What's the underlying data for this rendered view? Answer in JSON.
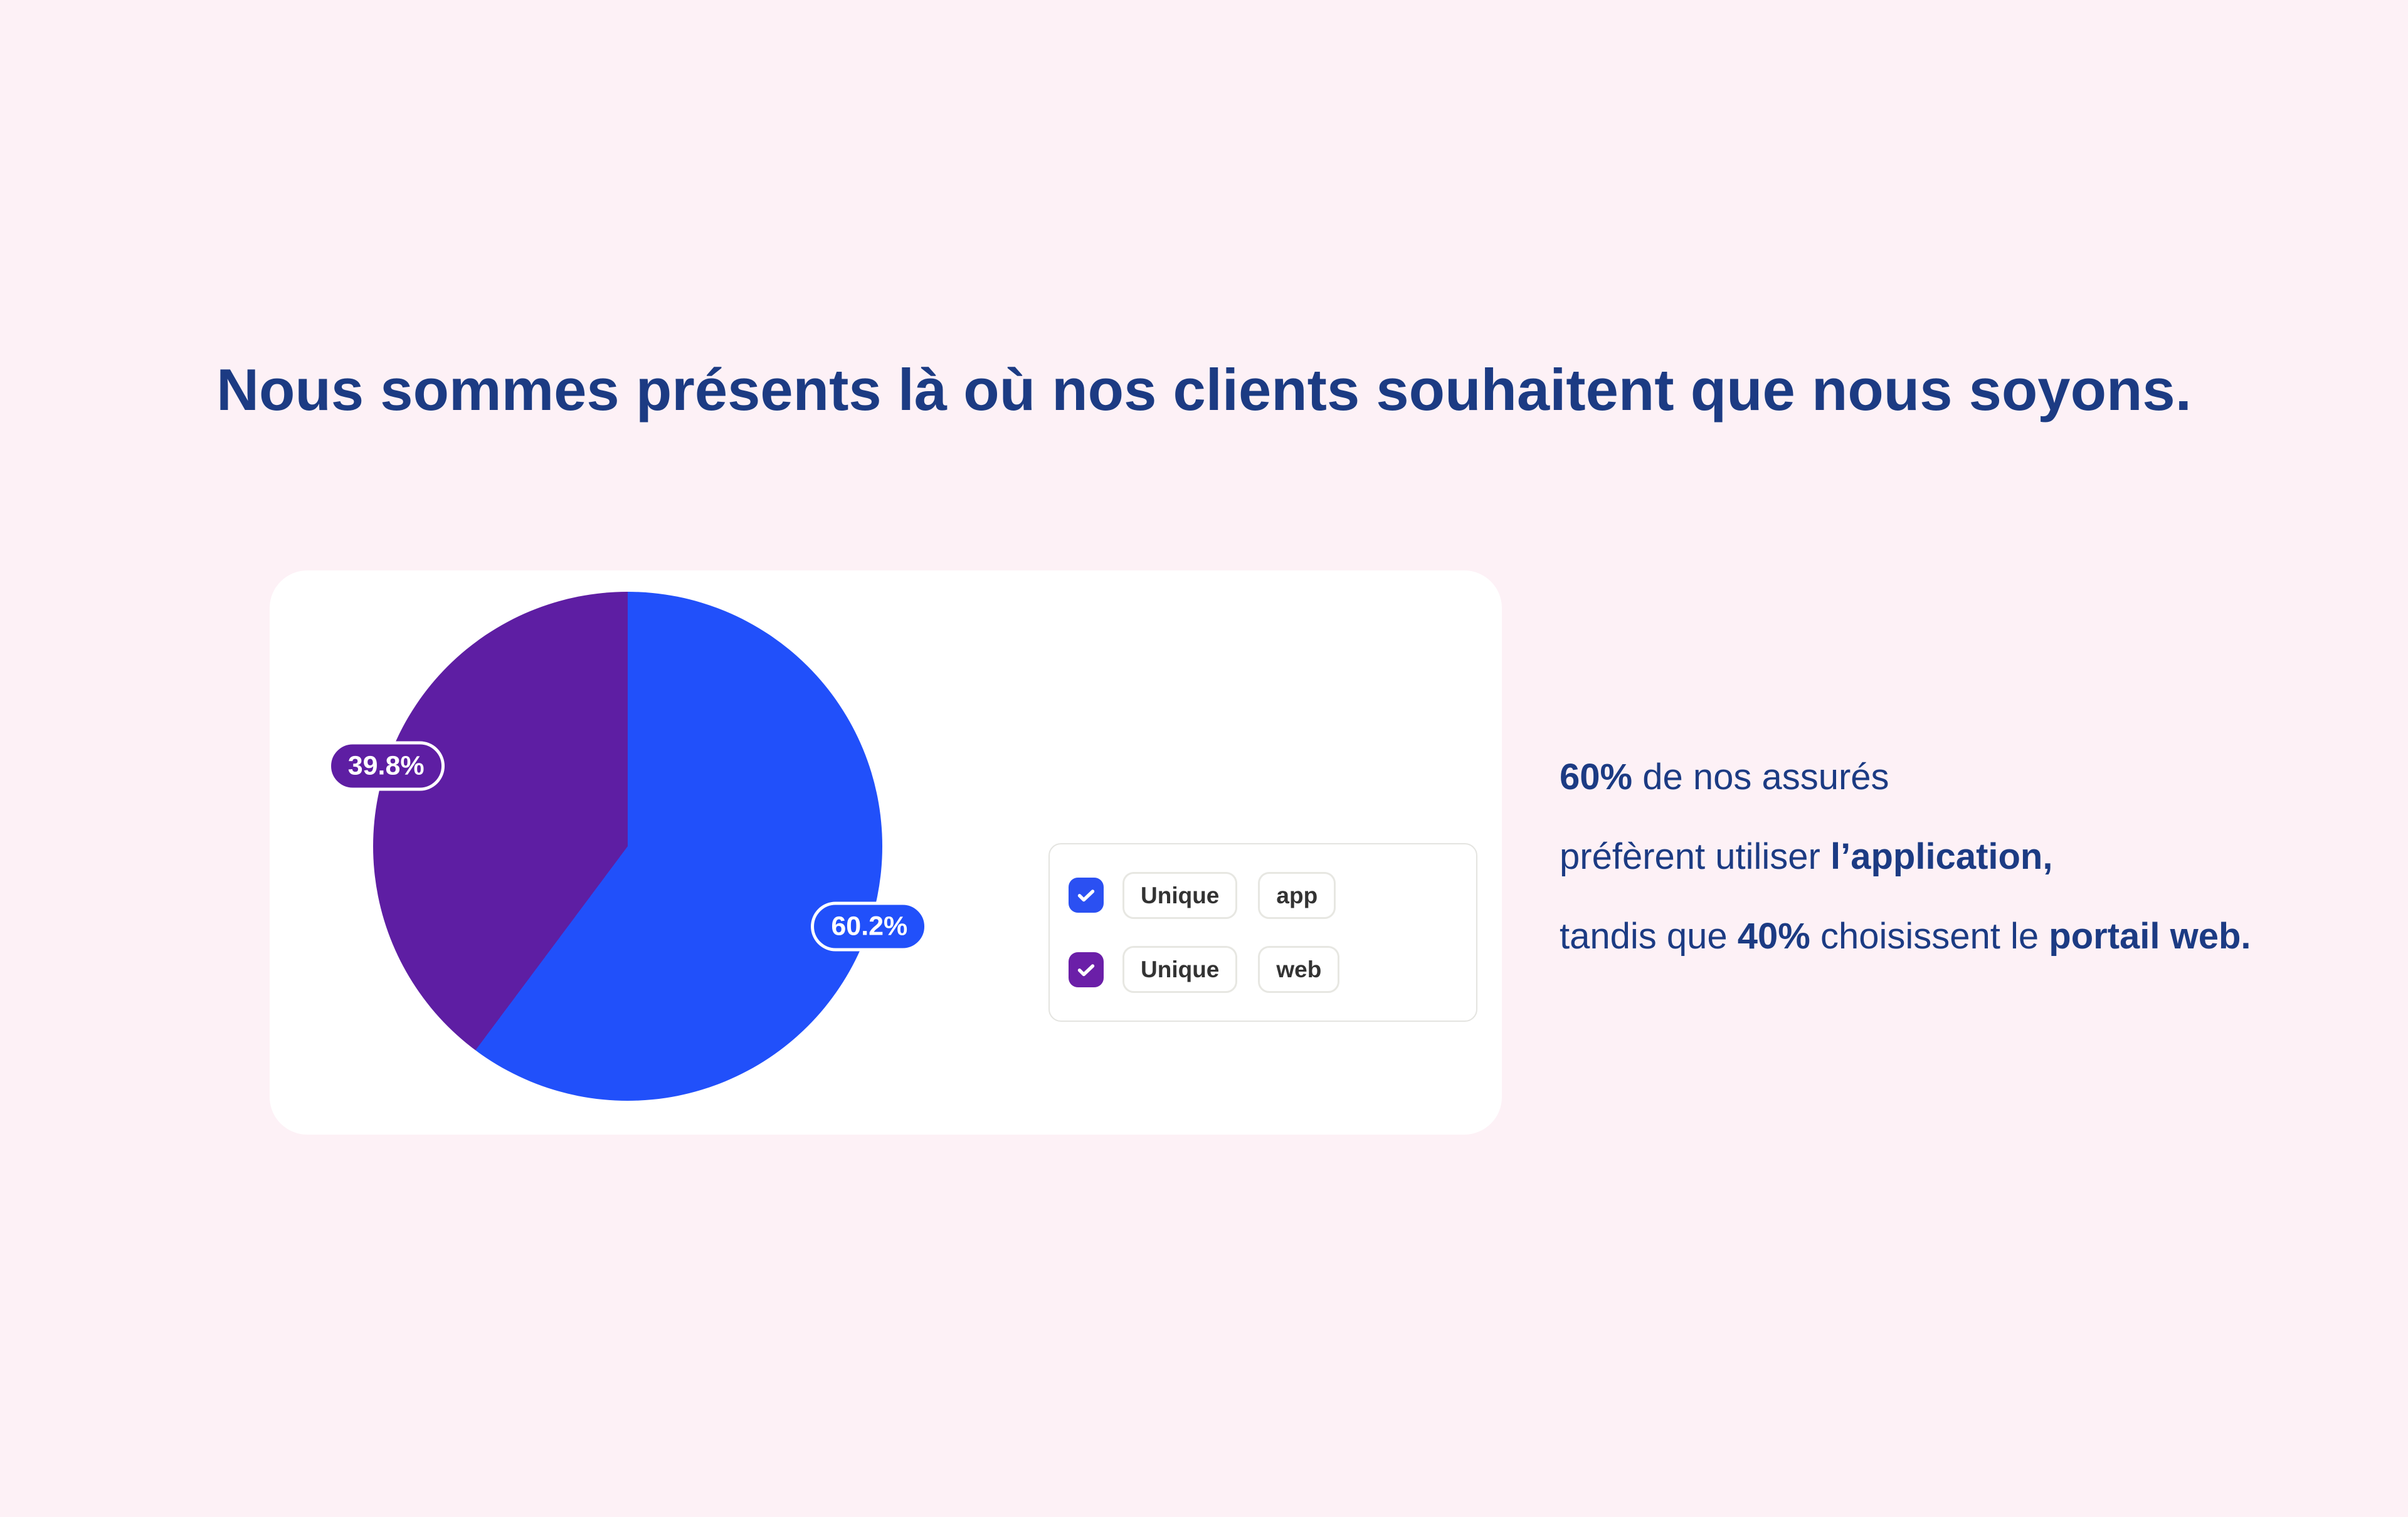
{
  "page": {
    "background_color": "#fdf1f6",
    "text_color": "#1c3b83",
    "title": "Nous sommes présents là où nos clients souhaitent que nous soyons."
  },
  "chart_card": {
    "legend": {
      "rows": [
        {
          "checked": true,
          "checkbox_color": "#2b50f2",
          "series_label": "Unique",
          "tag_label": "app"
        },
        {
          "checked": true,
          "checkbox_color": "#6b1fa8",
          "series_label": "Unique",
          "tag_label": "web"
        }
      ]
    }
  },
  "aside": {
    "line1": {
      "bold1": "60%",
      "text1": " de nos assurés"
    },
    "line2": {
      "text1": "préfèrent utiliser ",
      "bold1": "l’application,"
    },
    "line3": {
      "text1": "tandis que ",
      "bold1": "40%",
      "text2": " choisissent le ",
      "bold2": "portail web."
    }
  },
  "chart_data": {
    "type": "pie",
    "title": "",
    "slices": [
      {
        "name": "Unique app",
        "value": 60.2,
        "label": "60.2%",
        "color": "#2150fa"
      },
      {
        "name": "Unique web",
        "value": 39.8,
        "label": "39.8%",
        "color": "#5e1ea3"
      }
    ],
    "start_angle_deg": 0,
    "direction": "clockwise",
    "data_label_position": "on-rim",
    "legend_position": "right"
  }
}
